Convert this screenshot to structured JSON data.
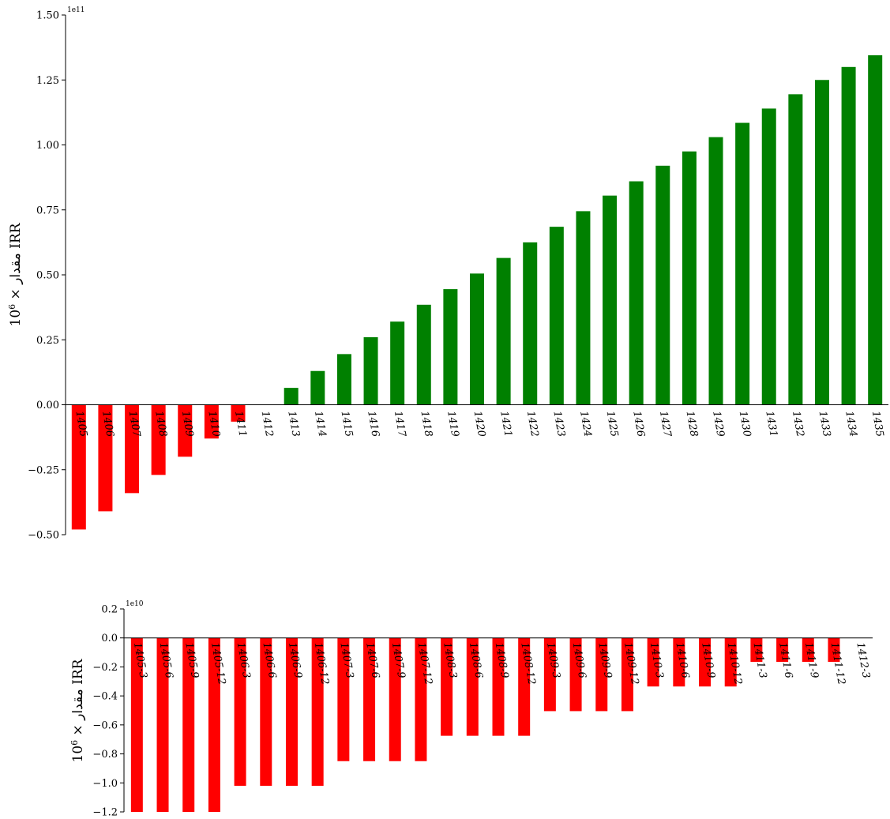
{
  "chart_data": [
    {
      "type": "bar",
      "categories": [
        "1405",
        "1406",
        "1407",
        "1408",
        "1409",
        "1410",
        "1411",
        "1412",
        "1413",
        "1414",
        "1415",
        "1416",
        "1417",
        "1418",
        "1419",
        "1420",
        "1421",
        "1422",
        "1423",
        "1424",
        "1425",
        "1426",
        "1427",
        "1428",
        "1429",
        "1430",
        "1431",
        "1432",
        "1433",
        "1434",
        "1435"
      ],
      "values": [
        -48000000000.0,
        -41000000000.0,
        -34000000000.0,
        -27000000000.0,
        -20000000000.0,
        -13000000000.0,
        -6500000000.0,
        0,
        6500000000.0,
        13000000000.0,
        19500000000.0,
        26000000000.0,
        32000000000.0,
        38500000000.0,
        44500000000.0,
        50500000000.0,
        56500000000.0,
        62500000000.0,
        68500000000.0,
        74500000000.0,
        80500000000.0,
        86000000000.0,
        92000000000.0,
        97500000000.0,
        103000000000.0,
        108500000000.0,
        114000000000.0,
        119500000000.0,
        125000000000.0,
        130000000000.0,
        134500000000.0
      ],
      "ylim": [
        -50000000000.0,
        150000000000.0
      ],
      "yticks": [
        -50000000000.0,
        -25000000000.0,
        0,
        25000000000.0,
        50000000000.0,
        75000000000.0,
        100000000000.0,
        125000000000.0,
        150000000000.0
      ],
      "ytick_labels": [
        "−0.50",
        "−0.25",
        "0.00",
        "0.25",
        "0.50",
        "0.75",
        "1.00",
        "1.25",
        "1.50"
      ],
      "offset_text": "1e11",
      "ylabel_prefix": "مقدار × 10",
      "ylabel_exp": "6",
      "ylabel_suffix": " IRR",
      "colors": {
        "positive": "#008000",
        "negative": "#ff0000"
      },
      "grid": false
    },
    {
      "type": "bar",
      "categories": [
        "1405-3",
        "1405-6",
        "1405-9",
        "1405-12",
        "1406-3",
        "1406-6",
        "1406-9",
        "1406-12",
        "1407-3",
        "1407-6",
        "1407-9",
        "1407-12",
        "1408-3",
        "1408-6",
        "1408-9",
        "1408-12",
        "1409-3",
        "1409-6",
        "1409-9",
        "1409-12",
        "1410-3",
        "1410-6",
        "1410-9",
        "1410-12",
        "1411-3",
        "1411-6",
        "1411-9",
        "1411-12",
        "1412-3"
      ],
      "values": [
        -12000000000.0,
        -12000000000.0,
        -12000000000.0,
        -12000000000.0,
        -10200000000.0,
        -10200000000.0,
        -10200000000.0,
        -10200000000.0,
        -8500000000.0,
        -8500000000.0,
        -8500000000.0,
        -8500000000.0,
        -6750000000.0,
        -6750000000.0,
        -6750000000.0,
        -6750000000.0,
        -5050000000.0,
        -5050000000.0,
        -5050000000.0,
        -5050000000.0,
        -3350000000.0,
        -3350000000.0,
        -3350000000.0,
        -3350000000.0,
        -1650000000.0,
        -1650000000.0,
        -1650000000.0,
        -1650000000.0,
        0
      ],
      "ylim": [
        -12000000000.0,
        2000000000.0
      ],
      "yticks": [
        -12000000000.0,
        -10000000000.0,
        -8000000000.0,
        -6000000000.0,
        -4000000000.0,
        -2000000000.0,
        0,
        2000000000.0
      ],
      "ytick_labels": [
        "−1.2",
        "−1.0",
        "−0.8",
        "−0.6",
        "−0.4",
        "−0.2",
        "0.0",
        "0.2"
      ],
      "offset_text": "1e10",
      "ylabel_prefix": "مقدار × 10",
      "ylabel_exp": "6",
      "ylabel_suffix": " IRR",
      "colors": {
        "positive": "#008000",
        "negative": "#ff0000"
      },
      "grid": false
    }
  ]
}
